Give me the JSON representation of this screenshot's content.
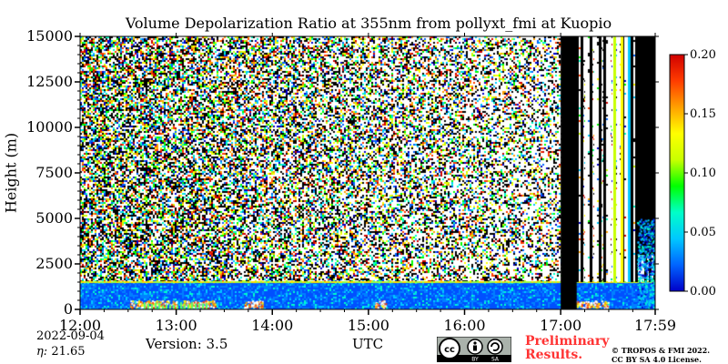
{
  "chart_data": {
    "type": "heatmap",
    "title": "Volume Depolarization Ratio at 355nm from pollyxt_fmi at Kuopio",
    "ylabel": "Height (m)",
    "xlabel": "UTC",
    "x_ticks": [
      "12:00",
      "13:00",
      "14:00",
      "15:00",
      "16:00",
      "17:00",
      "17:59"
    ],
    "y_ticks": [
      "0",
      "2500",
      "5000",
      "7500",
      "10000",
      "12500",
      "15000"
    ],
    "xlim": [
      "12:00",
      "17:59"
    ],
    "ylim": [
      0,
      15000
    ],
    "colorbar": {
      "range": [
        0.0,
        0.2
      ],
      "ticks": [
        "0.00",
        "0.05",
        "0.10",
        "0.15",
        "0.20"
      ],
      "colors": [
        "#0000c8",
        "#0064ff",
        "#00c8ff",
        "#00ffc8",
        "#00ff00",
        "#c8ff00",
        "#ffff00",
        "#ffa000",
        "#ff3c00",
        "#d00000"
      ]
    },
    "features": {
      "aerosol_layer_top_m": 1500,
      "cloud_base_m": 300,
      "no_data_interval": [
        "17:00",
        "17:10"
      ]
    }
  },
  "footer": {
    "date": "2022-09-04",
    "eta_label": "η:",
    "eta_value": "21.65",
    "version": "Version: 3.5",
    "license_icon": "cc-by-sa-icon",
    "preliminary_line1": "Preliminary",
    "preliminary_line2": "Results.",
    "copyright_line1": "© TROPOS & FMI 2022.",
    "copyright_line2": "CC BY SA 4.0 License."
  }
}
